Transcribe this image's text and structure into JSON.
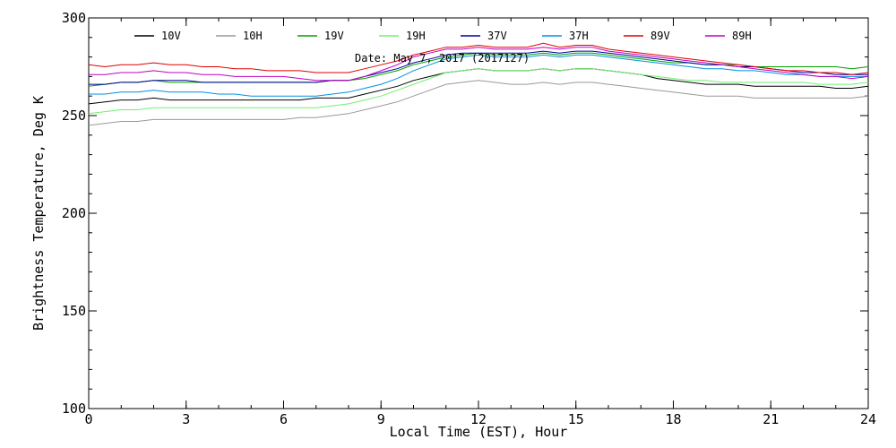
{
  "chart_data": {
    "type": "line",
    "title": "",
    "annotation": "Date: May  7, 2017 (2017127)",
    "xlabel": "Local Time (EST), Hour",
    "ylabel": "Brightness Temperature, Deg K",
    "xlim": [
      0,
      24
    ],
    "ylim": [
      100,
      300
    ],
    "xticks": [
      0,
      3,
      6,
      9,
      12,
      15,
      18,
      21,
      24
    ],
    "yticks": [
      100,
      150,
      200,
      250,
      300
    ],
    "x_minor_step": 1,
    "y_minor_step": 10,
    "grid": false,
    "legend_position": "top",
    "x": [
      0,
      0.5,
      1,
      1.5,
      2,
      2.5,
      3,
      3.5,
      4,
      4.5,
      5,
      5.5,
      6,
      6.5,
      7,
      7.5,
      8,
      8.5,
      9,
      9.5,
      10,
      10.5,
      11,
      11.5,
      12,
      12.5,
      13,
      13.5,
      14,
      14.5,
      15,
      15.5,
      16,
      16.5,
      17,
      17.5,
      18,
      18.5,
      19,
      19.5,
      20,
      20.5,
      21,
      21.5,
      22,
      22.5,
      23,
      23.5,
      24
    ],
    "series": [
      {
        "name": "10V",
        "color": "#000000",
        "values": [
          256,
          257,
          258,
          258,
          259,
          258,
          258,
          258,
          258,
          258,
          258,
          258,
          258,
          258,
          259,
          259,
          259,
          261,
          263,
          265,
          268,
          270,
          272,
          273,
          274,
          273,
          273,
          273,
          274,
          273,
          274,
          274,
          273,
          272,
          271,
          269,
          268,
          267,
          266,
          266,
          266,
          265,
          265,
          265,
          265,
          265,
          264,
          264,
          265
        ]
      },
      {
        "name": "10H",
        "color": "#999999",
        "values": [
          245,
          246,
          247,
          247,
          248,
          248,
          248,
          248,
          248,
          248,
          248,
          248,
          248,
          249,
          249,
          250,
          251,
          253,
          255,
          257,
          260,
          263,
          266,
          267,
          268,
          267,
          266,
          266,
          267,
          266,
          267,
          267,
          266,
          265,
          264,
          263,
          262,
          261,
          260,
          260,
          260,
          259,
          259,
          259,
          259,
          259,
          259,
          259,
          260
        ]
      },
      {
        "name": "19V",
        "color": "#00A000",
        "values": [
          265,
          266,
          267,
          267,
          268,
          267,
          267,
          267,
          267,
          267,
          267,
          267,
          267,
          267,
          267,
          268,
          268,
          269,
          271,
          273,
          276,
          278,
          280,
          281,
          282,
          281,
          281,
          281,
          282,
          281,
          282,
          282,
          281,
          280,
          279,
          278,
          277,
          277,
          276,
          276,
          276,
          275,
          275,
          275,
          275,
          275,
          275,
          274,
          275
        ]
      },
      {
        "name": "19H",
        "color": "#70F070",
        "values": [
          251,
          252,
          253,
          253,
          254,
          254,
          254,
          254,
          254,
          254,
          254,
          254,
          254,
          254,
          254,
          255,
          256,
          258,
          260,
          263,
          266,
          269,
          272,
          273,
          274,
          273,
          273,
          273,
          274,
          273,
          274,
          274,
          273,
          272,
          271,
          270,
          269,
          268,
          268,
          267,
          267,
          267,
          267,
          267,
          267,
          266,
          266,
          266,
          267
        ]
      },
      {
        "name": "37V",
        "color": "#0000A0",
        "values": [
          266,
          266,
          267,
          267,
          268,
          268,
          268,
          267,
          267,
          267,
          267,
          267,
          267,
          267,
          267,
          268,
          268,
          270,
          272,
          274,
          277,
          279,
          281,
          282,
          282,
          282,
          282,
          282,
          283,
          282,
          283,
          283,
          282,
          281,
          280,
          279,
          278,
          277,
          276,
          276,
          275,
          275,
          274,
          273,
          272,
          272,
          271,
          271,
          271
        ]
      },
      {
        "name": "37H",
        "color": "#0090E0",
        "values": [
          261,
          261,
          262,
          262,
          263,
          262,
          262,
          262,
          261,
          261,
          260,
          260,
          260,
          260,
          260,
          261,
          262,
          264,
          266,
          269,
          273,
          276,
          279,
          280,
          281,
          280,
          280,
          280,
          281,
          280,
          281,
          281,
          280,
          279,
          278,
          277,
          276,
          275,
          274,
          274,
          273,
          273,
          272,
          271,
          271,
          270,
          270,
          270,
          270
        ]
      },
      {
        "name": "89V",
        "color": "#E00000",
        "values": [
          276,
          275,
          276,
          276,
          277,
          276,
          276,
          275,
          275,
          274,
          274,
          273,
          273,
          273,
          272,
          272,
          272,
          274,
          276,
          278,
          281,
          283,
          285,
          285,
          286,
          285,
          285,
          285,
          287,
          285,
          286,
          286,
          284,
          283,
          282,
          281,
          280,
          279,
          278,
          277,
          276,
          275,
          274,
          273,
          273,
          272,
          272,
          271,
          272
        ]
      },
      {
        "name": "89H",
        "color": "#C000C0",
        "values": [
          271,
          271,
          272,
          272,
          273,
          272,
          272,
          271,
          271,
          270,
          270,
          270,
          270,
          269,
          268,
          268,
          268,
          270,
          273,
          276,
          280,
          282,
          284,
          284,
          285,
          284,
          284,
          284,
          285,
          284,
          285,
          285,
          283,
          282,
          281,
          280,
          279,
          278,
          277,
          276,
          275,
          274,
          273,
          272,
          271,
          270,
          270,
          269,
          270
        ]
      }
    ]
  }
}
